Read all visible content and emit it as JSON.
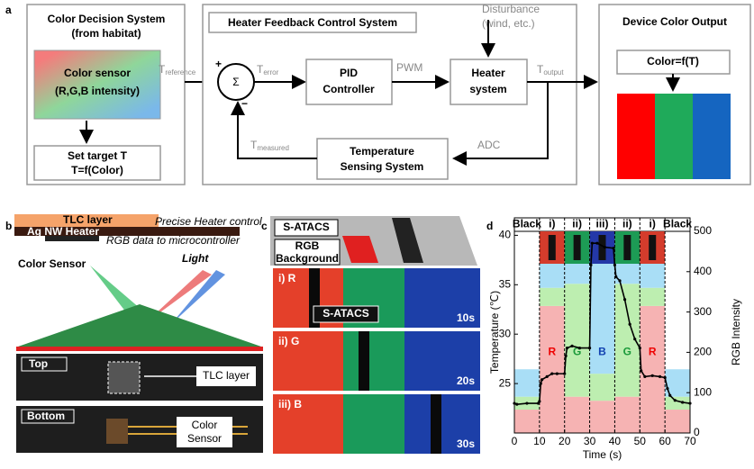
{
  "panel_labels": [
    "a",
    "b",
    "c",
    "d"
  ],
  "panel_a": {
    "decision_title": [
      "Color Decision System",
      "(from habitat)"
    ],
    "sensor": [
      "Color sensor",
      "(R,G,B intensity)"
    ],
    "target": [
      "Set target T",
      "T=f(Color)"
    ],
    "control_title": "Heater Feedback Control System",
    "disturbance": [
      "Disturbance",
      "(wind, etc.)"
    ],
    "sum": "Σ",
    "plus": "+",
    "minus": "−",
    "pid": [
      "PID",
      "Controller"
    ],
    "pwm": "PWM",
    "heater": [
      "Heater",
      "system"
    ],
    "sensing": [
      "Temperature",
      "Sensing System"
    ],
    "adc": "ADC",
    "signals": {
      "reference": {
        "main": "T",
        "sub": "reference"
      },
      "error": {
        "main": "T",
        "sub": "error"
      },
      "output": {
        "main": "T",
        "sub": "output"
      },
      "measured": {
        "main": "T",
        "sub": "measured"
      }
    },
    "output_title": "Device Color Output",
    "output_formula": "Color=f(T)"
  },
  "panel_b": {
    "tlc": "TLC layer",
    "heater_control": "Precise Heater control",
    "agnw": "Ag NW Heater",
    "rgb_data": "RGB data to microcontroller",
    "color_sensor": "Color Sensor",
    "light": "Light",
    "top": "Top",
    "tlc_label": "TLC layer",
    "bottom": "Bottom",
    "sensor_label": [
      "Color",
      "Sensor"
    ]
  },
  "panel_c": {
    "satacs": "S-ATACS",
    "background": [
      "RGB",
      "Background"
    ],
    "frames": [
      {
        "label": "i) R",
        "time": "10s"
      },
      {
        "label": "ii) G",
        "time": "20s"
      },
      {
        "label": "iii) B",
        "time": "30s"
      }
    ],
    "satacs_label": "S-ATACS"
  },
  "chart_data": {
    "type": "line",
    "xlabel": "Time (s)",
    "ylabel": "Temperature (℃)",
    "y2label": "RGB Intensity",
    "xlim": [
      0,
      70
    ],
    "xticks": [
      0,
      10,
      20,
      30,
      40,
      50,
      60,
      70
    ],
    "ylim": [
      20,
      40.4
    ],
    "yticks": [
      25,
      30,
      35,
      40
    ],
    "y2lim": [
      0,
      500
    ],
    "y2ticks": [
      0,
      100,
      200,
      300,
      400,
      500
    ],
    "phase_labels": [
      "Black",
      "i)",
      "ii)",
      "iii)",
      "ii)",
      "i)",
      "Black"
    ],
    "band_edges": [
      0,
      10,
      20,
      30,
      40,
      50,
      60,
      70
    ],
    "band_letters": [
      "R",
      "G",
      "B",
      "G",
      "R"
    ],
    "bands": [
      {
        "color": "#f6b3b3",
        "axis": "y2",
        "values": [
          58,
          315,
          90,
          80,
          90,
          315,
          58
        ]
      },
      {
        "color": "#bdeeb0",
        "axis": "y2",
        "values": [
          32,
          45,
          280,
          67,
          280,
          45,
          32
        ]
      },
      {
        "color": "#a9def6",
        "axis": "y2",
        "values": [
          68,
          70,
          55,
          280,
          55,
          70,
          68
        ]
      }
    ],
    "series": [
      {
        "color": "#000000",
        "x": [
          0,
          1,
          5,
          9.5,
          10,
          10.5,
          11,
          13,
          15,
          17,
          20,
          20.5,
          21,
          23,
          26,
          30,
          30.5,
          31,
          33,
          36,
          39.5,
          40,
          40.5,
          42,
          44,
          46,
          48,
          50,
          50.5,
          52,
          55,
          58,
          60,
          61,
          62,
          64,
          67,
          70
        ],
        "values": [
          23,
          22.9,
          23,
          23,
          23.2,
          25,
          25.4,
          25.7,
          26,
          26,
          26,
          27.8,
          28.6,
          28.8,
          28.6,
          28.6,
          37,
          39.2,
          39.2,
          38.8,
          38.7,
          37,
          35.8,
          35.4,
          33.5,
          31,
          29.5,
          28.6,
          26.3,
          25.7,
          25.8,
          25.7,
          25.6,
          24.5,
          23.8,
          23.3,
          23.1,
          23
        ]
      }
    ]
  }
}
